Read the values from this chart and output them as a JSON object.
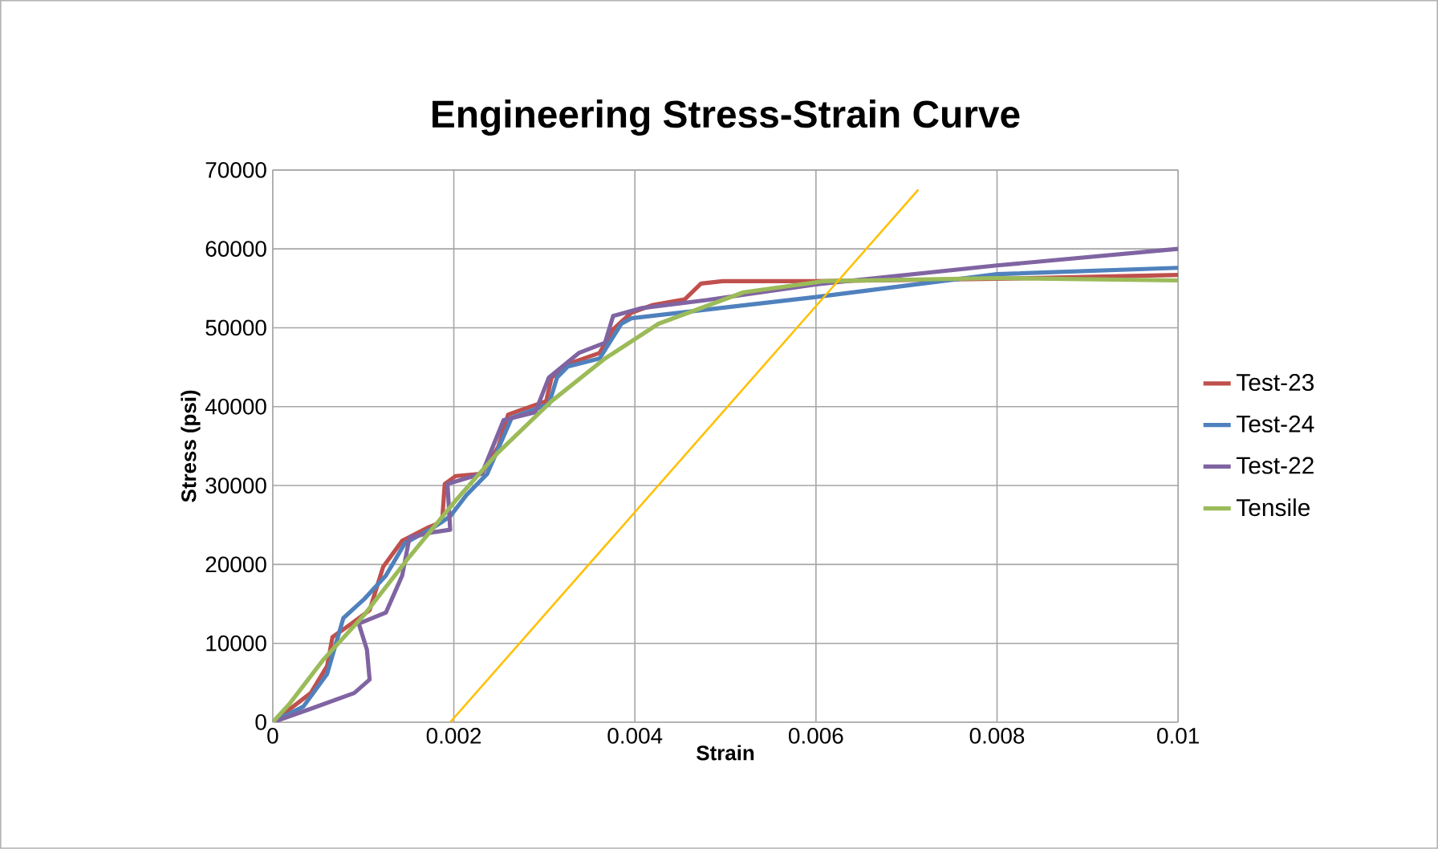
{
  "chart_data": {
    "type": "line",
    "title": "Engineering Stress-Strain Curve",
    "xlabel": "Strain",
    "ylabel": "Stress (psi)",
    "xlim": [
      0,
      0.01
    ],
    "xticks": [
      0,
      0.002,
      0.004,
      0.006,
      0.008,
      0.01
    ],
    "ylim": [
      0,
      70000
    ],
    "yticks": [
      0,
      10000,
      20000,
      30000,
      40000,
      50000,
      60000,
      70000
    ],
    "grid": true,
    "legend": "right",
    "marker": "none",
    "line_style": "solid",
    "series": [
      {
        "name": "Test-23",
        "color": "#c0504d",
        "x": [
          0,
          0.00042,
          0.0006,
          0.00066,
          0.00087,
          0.00107,
          0.00122,
          0.00143,
          0.00172,
          0.00187,
          0.0019,
          0.00202,
          0.00231,
          0.00249,
          0.0026,
          0.00302,
          0.00308,
          0.00326,
          0.00361,
          0.00376,
          0.00396,
          0.0042,
          0.00455,
          0.00473,
          0.00497,
          0.006,
          0.008,
          0.01
        ],
        "values": [
          0,
          3700,
          7100,
          10800,
          12500,
          14200,
          19700,
          23000,
          24700,
          25400,
          30200,
          31200,
          31500,
          34900,
          39000,
          40700,
          43700,
          45400,
          46800,
          49800,
          51900,
          52900,
          53600,
          55600,
          55900,
          55900,
          56200,
          56700
        ]
      },
      {
        "name": "Test-24",
        "color": "#4f81bd",
        "x": [
          0,
          0.00034,
          0.0006,
          0.00078,
          0.00101,
          0.00125,
          0.00146,
          0.00178,
          0.00196,
          0.00214,
          0.00237,
          0.00264,
          0.00305,
          0.00314,
          0.00326,
          0.00361,
          0.00385,
          0.00396,
          0.006,
          0.008,
          0.01
        ],
        "values": [
          0,
          2000,
          6100,
          13200,
          15600,
          18600,
          22700,
          24700,
          26100,
          28800,
          31500,
          38600,
          40300,
          43700,
          45100,
          46100,
          50500,
          51200,
          53900,
          56800,
          57600
        ]
      },
      {
        "name": "Test-22",
        "color": "#8064a2",
        "x": [
          0,
          0.00042,
          0.0009,
          0.00107,
          0.00104,
          0.00095,
          0.00125,
          0.00143,
          0.00151,
          0.00178,
          0.00196,
          0.00193,
          0.00231,
          0.00255,
          0.0029,
          0.00305,
          0.00338,
          0.00367,
          0.00376,
          0.00408,
          0.00479,
          0.006,
          0.008,
          0.01
        ],
        "values": [
          0,
          1700,
          3700,
          5400,
          9200,
          12500,
          13900,
          18600,
          23400,
          24100,
          24400,
          30200,
          31500,
          38300,
          39300,
          43700,
          46800,
          48100,
          51500,
          52500,
          53500,
          55500,
          57900,
          60000
        ]
      },
      {
        "name": "Tensile",
        "color": "#9bbb59",
        "x": [
          0,
          0.00019,
          0.00055,
          0.00101,
          0.00149,
          0.00202,
          0.00249,
          0.00308,
          0.00367,
          0.00426,
          0.0052,
          0.00608,
          0.008,
          0.01
        ],
        "values": [
          0,
          2400,
          7800,
          13600,
          20700,
          28100,
          34200,
          40700,
          46100,
          50500,
          54500,
          55900,
          56300,
          56000
        ]
      },
      {
        "color": "#ffc000",
        "x": [
          0.00196,
          0.00713
        ],
        "values": [
          0,
          67500
        ]
      }
    ]
  }
}
